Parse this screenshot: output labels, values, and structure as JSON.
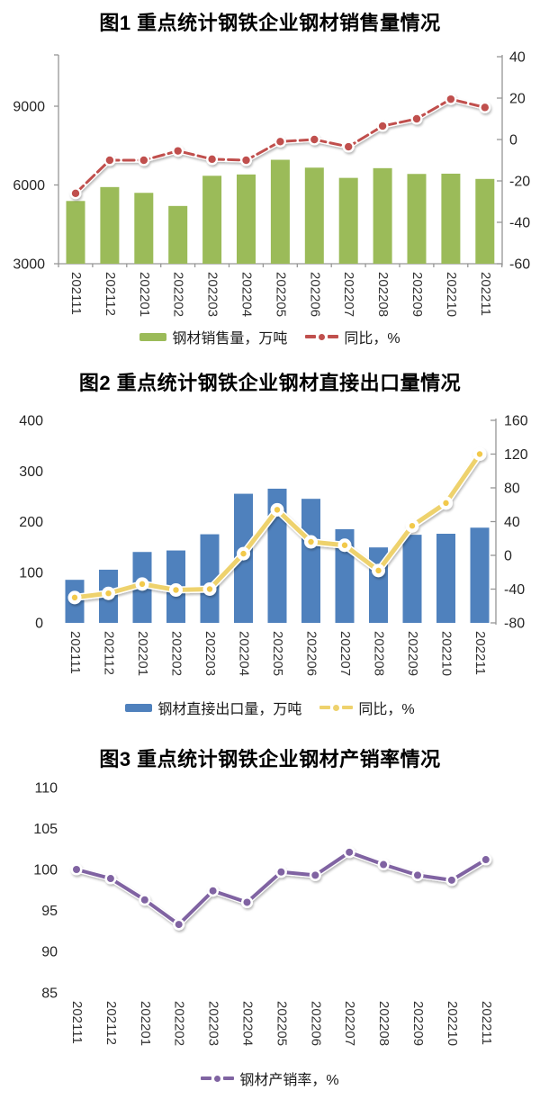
{
  "page_background": "#ffffff",
  "text_color": "#262626",
  "axis_color": "#969696",
  "chart_data": [
    {
      "type": "bar",
      "title": "图1 重点统计钢铁企业钢材销售量情况",
      "categories": [
        "202111",
        "202112",
        "202201",
        "202202",
        "202203",
        "202204",
        "202205",
        "202206",
        "202207",
        "202208",
        "202209",
        "202210",
        "202211"
      ],
      "series": [
        {
          "name": "钢材销售量，万吨",
          "kind": "bar",
          "axis": "left",
          "color": "#9bbb59",
          "values": [
            5390,
            5920,
            5700,
            5200,
            6350,
            6400,
            6960,
            6660,
            6270,
            6640,
            6420,
            6430,
            6230
          ]
        },
        {
          "name": "同比，%",
          "kind": "line",
          "axis": "right",
          "color": "#c0504d",
          "values": [
            -26,
            -10,
            -10,
            -5.5,
            -9.5,
            -10,
            -1,
            0,
            -3.5,
            6.5,
            10,
            19.5,
            15.5
          ]
        }
      ],
      "left_axis": {
        "ticks": [
          9000,
          6000,
          3000
        ],
        "min": 3000,
        "max": 11000
      },
      "right_axis": {
        "ticks": [
          40,
          20,
          0,
          -20,
          -40,
          -60
        ],
        "min": -60,
        "max": 40
      },
      "grid": false,
      "legend_position": "bottom"
    },
    {
      "type": "bar",
      "title": "图2 重点统计钢铁企业钢材直接出口量情况",
      "categories": [
        "202111",
        "202112",
        "202201",
        "202202",
        "202203",
        "202204",
        "202205",
        "202206",
        "202207",
        "202208",
        "202209",
        "202210",
        "202211"
      ],
      "series": [
        {
          "name": "钢材直接出口量，万吨",
          "kind": "bar",
          "axis": "left",
          "color": "#4f81bd",
          "values": [
            85,
            105,
            140,
            143,
            175,
            255,
            265,
            245,
            185,
            149,
            174,
            176,
            188
          ]
        },
        {
          "name": "同比，%",
          "kind": "line",
          "axis": "right",
          "color": "#eed26d",
          "values": [
            -50,
            -45,
            -34,
            -41,
            -40,
            2,
            54,
            16,
            12,
            -18,
            35,
            62,
            120
          ]
        }
      ],
      "left_axis": {
        "ticks": [
          400,
          300,
          200,
          100,
          0
        ],
        "min": 0,
        "max": 400
      },
      "right_axis": {
        "ticks": [
          160,
          120,
          80,
          40,
          0,
          -40,
          -80
        ],
        "min": -80,
        "max": 160
      },
      "grid": false,
      "legend_position": "bottom"
    },
    {
      "type": "line",
      "title": "图3 重点统计钢铁企业钢材产销率情况",
      "categories": [
        "202111",
        "202112",
        "202201",
        "202202",
        "202203",
        "202204",
        "202205",
        "202206",
        "202207",
        "202208",
        "202209",
        "202210",
        "202211"
      ],
      "series": [
        {
          "name": "钢材产销率，%",
          "kind": "line",
          "axis": "left",
          "color": "#8064a2",
          "values": [
            100.0,
            98.9,
            96.3,
            93.3,
            97.4,
            96.0,
            99.7,
            99.3,
            102.1,
            100.6,
            99.3,
            98.7,
            101.2
          ]
        }
      ],
      "left_axis": {
        "ticks": [
          110,
          105,
          100,
          95,
          90,
          85
        ],
        "min": 85,
        "max": 110
      },
      "grid": false,
      "legend_position": "bottom"
    }
  ]
}
